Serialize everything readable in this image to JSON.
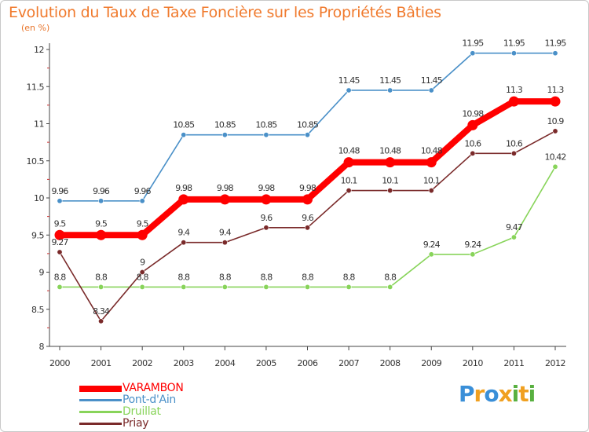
{
  "title": "Evolution du Taux de Taxe Foncière sur les Propriétés Bâties",
  "unit_label": "(en %)",
  "chart_data": {
    "type": "line",
    "title": "Evolution du Taux de Taxe Foncière sur les Propriétés Bâties",
    "ylabel": "(en %)",
    "xlabel": "",
    "ylim": [
      8,
      12
    ],
    "yticks": [
      "8",
      "8.5",
      "9",
      "9.5",
      "10",
      "10.5",
      "11",
      "11.5",
      "12"
    ],
    "categories": [
      "2000",
      "2001",
      "2002",
      "2003",
      "2004",
      "2005",
      "2006",
      "2007",
      "2008",
      "2009",
      "2010",
      "2011",
      "2012"
    ],
    "series": [
      {
        "name": "VARAMBON",
        "color": "#ff0000",
        "values": [
          9.5,
          9.5,
          9.5,
          9.98,
          9.98,
          9.98,
          9.98,
          10.48,
          10.48,
          10.48,
          10.98,
          11.3,
          11.3
        ],
        "labels": [
          "9.5",
          "9.5",
          "9.5",
          "9.98",
          "9.98",
          "9.98",
          "9.98",
          "10.48",
          "10.48",
          "10.48",
          "10.98",
          "11.3",
          "11.3"
        ]
      },
      {
        "name": "Pont-d'Ain",
        "color": "#4a90c8",
        "values": [
          9.96,
          9.96,
          9.96,
          10.85,
          10.85,
          10.85,
          10.85,
          11.45,
          11.45,
          11.45,
          11.95,
          11.95,
          11.95
        ],
        "labels": [
          "9.96",
          "9.96",
          "9.96",
          "10.85",
          "10.85",
          "10.85",
          "10.85",
          "11.45",
          "11.45",
          "11.45",
          "11.95",
          "11.95",
          "11.95"
        ]
      },
      {
        "name": "Druillat",
        "color": "#88d45a",
        "values": [
          8.8,
          8.8,
          8.8,
          8.8,
          8.8,
          8.8,
          8.8,
          8.8,
          8.8,
          9.24,
          9.24,
          9.47,
          10.42
        ],
        "labels": [
          "8.8",
          "8.8",
          "8.8",
          "8.8",
          "8.8",
          "8.8",
          "8.8",
          "8.8",
          "8.8",
          "9.24",
          "9.24",
          "9.47",
          "10.42"
        ]
      },
      {
        "name": "Priay",
        "color": "#7a2a2a",
        "values": [
          9.27,
          8.34,
          9.0,
          9.4,
          9.4,
          9.6,
          9.6,
          10.1,
          10.1,
          10.1,
          10.6,
          10.6,
          10.9
        ],
        "labels": [
          "9.27",
          "8.34",
          "9",
          "9.4",
          "9.4",
          "9.6",
          "9.6",
          "10.1",
          "10.1",
          "10.1",
          "10.6",
          "10.6",
          "10.9"
        ]
      }
    ],
    "legend": "bottom-left"
  },
  "logo": {
    "letters": [
      "P",
      "r",
      "o",
      "x",
      "i",
      "t",
      "i"
    ],
    "colors": [
      "#3a8fd8",
      "#f0a020",
      "#3a8fd8",
      "#f0a020",
      "#58b040",
      "#f0a020",
      "#58b040"
    ]
  }
}
